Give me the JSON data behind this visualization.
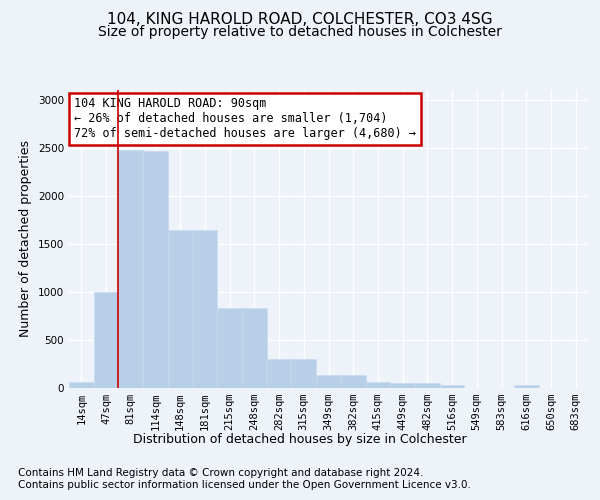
{
  "title1": "104, KING HAROLD ROAD, COLCHESTER, CO3 4SG",
  "title2": "Size of property relative to detached houses in Colchester",
  "xlabel": "Distribution of detached houses by size in Colchester",
  "ylabel": "Number of detached properties",
  "footer1": "Contains HM Land Registry data © Crown copyright and database right 2024.",
  "footer2": "Contains public sector information licensed under the Open Government Licence v3.0.",
  "annotation_line1": "104 KING HAROLD ROAD: 90sqm",
  "annotation_line2": "← 26% of detached houses are smaller (1,704)",
  "annotation_line3": "72% of semi-detached houses are larger (4,680) →",
  "bar_labels": [
    "14sqm",
    "47sqm",
    "81sqm",
    "114sqm",
    "148sqm",
    "181sqm",
    "215sqm",
    "248sqm",
    "282sqm",
    "315sqm",
    "349sqm",
    "382sqm",
    "415sqm",
    "449sqm",
    "482sqm",
    "516sqm",
    "549sqm",
    "583sqm",
    "616sqm",
    "650sqm",
    "683sqm"
  ],
  "bar_values": [
    55,
    1000,
    2470,
    2460,
    1640,
    1640,
    830,
    830,
    300,
    300,
    130,
    130,
    55,
    45,
    45,
    30,
    0,
    0,
    25,
    0,
    0
  ],
  "red_line_index": 2,
  "bar_color": "#b8cfe8",
  "bar_edge_color": "#c8daf0",
  "ylim": [
    0,
    3100
  ],
  "yticks": [
    0,
    500,
    1000,
    1500,
    2000,
    2500,
    3000
  ],
  "bg_color": "#eef2f9",
  "grid_color": "#ffffff",
  "annotation_box_facecolor": "#ffffff",
  "annotation_box_edgecolor": "#cc0000",
  "title1_fontsize": 11,
  "title2_fontsize": 10,
  "ylabel_fontsize": 9,
  "xlabel_fontsize": 9,
  "tick_fontsize": 7.5,
  "annotation_fontsize": 8.5,
  "footer_fontsize": 7.5
}
